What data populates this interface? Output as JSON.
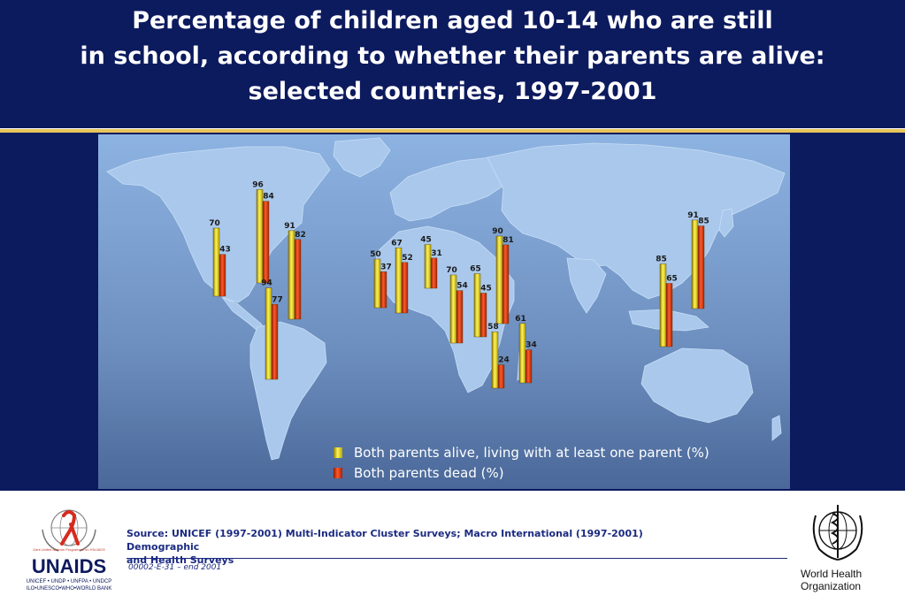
{
  "title_lines": [
    "Percentage of children aged 10-14 who are still",
    "in school, according to whether their parents are alive:",
    "selected countries, 1997-2001"
  ],
  "colors": {
    "header_bg": "#0c1a5e",
    "rule": "#e8c55a",
    "ocean": "#7ea3d6",
    "land": "#a9c8ec",
    "alive_bar": "#f2e20a",
    "dead_bar": "#e23a12"
  },
  "chart_data": {
    "type": "bar",
    "title": "Percentage of children aged 10-14 who are still in school, according to whether their parents are alive: selected countries, 1997-2001",
    "series": [
      {
        "name": "Both parents alive, living with at least one parent (%)",
        "values": [
          70,
          96,
          91,
          94,
          50,
          67,
          45,
          70,
          65,
          90,
          58,
          61,
          85,
          91
        ]
      },
      {
        "name": "Both parents dead (%)",
        "values": [
          43,
          84,
          82,
          77,
          37,
          52,
          31,
          54,
          45,
          81,
          24,
          34,
          65,
          85
        ]
      }
    ],
    "categories": [
      "",
      "",
      "",
      "",
      "",
      "",
      "",
      "",
      "",
      "",
      "",
      "",
      "",
      ""
    ],
    "legend_placement": "bottom-right"
  },
  "legend": {
    "alive": "Both parents alive, living with at least one parent (%)",
    "dead": "Both parents dead (%)"
  },
  "footer": {
    "source_line1": "Source:  UNICEF (1997-2001) Multi-Indicator Cluster Surveys; Macro International (1997-2001) Demographic",
    "source_line2": "and Health Surveys",
    "code": "00002-E-31 – end 2001",
    "unaids_name": "UNAIDS",
    "unaids_tagline": "Joint United Nations Programme on HIV/AIDS",
    "unaids_partners_1": "UNICEF • UNDP • UNFPA • UNDCP",
    "unaids_partners_2": "ILO•UNESCO•WHO•WORLD BANK",
    "who_name_1": "World Health",
    "who_name_2": "Organization"
  }
}
